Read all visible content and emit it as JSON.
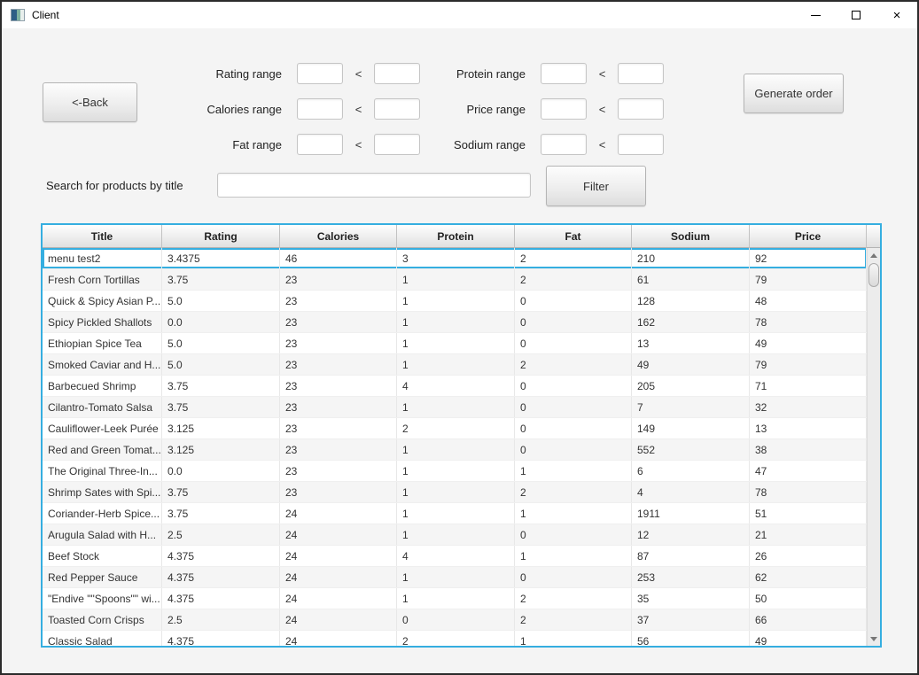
{
  "window": {
    "title": "Client",
    "controls": {
      "minimize": "minimize",
      "maximize": "maximize",
      "close": "×"
    }
  },
  "colors": {
    "focus_accent": "#35aee0",
    "background": "#f4f4f4",
    "row_alt": "#f5f5f5"
  },
  "controls": {
    "back_label": "<-Back",
    "generate_label": "Generate order",
    "filter_label": "Filter",
    "lt": "<"
  },
  "search": {
    "label": "Search for products by title",
    "value": ""
  },
  "ranges": {
    "left": [
      {
        "label": "Rating range",
        "min": "",
        "max": ""
      },
      {
        "label": "Calories range",
        "min": "",
        "max": ""
      },
      {
        "label": "Fat range",
        "min": "",
        "max": ""
      }
    ],
    "right": [
      {
        "label": "Protein range",
        "min": "",
        "max": ""
      },
      {
        "label": "Price range",
        "min": "",
        "max": ""
      },
      {
        "label": "Sodium range",
        "min": "",
        "max": ""
      }
    ]
  },
  "table": {
    "columns": [
      "Title",
      "Rating",
      "Calories",
      "Protein",
      "Fat",
      "Sodium",
      "Price"
    ],
    "selected_index": 0,
    "rows": [
      [
        "menu test2",
        "3.4375",
        "46",
        "3",
        "2",
        "210",
        "92"
      ],
      [
        "Fresh Corn Tortillas",
        "3.75",
        "23",
        "1",
        "2",
        "61",
        "79"
      ],
      [
        "Quick & Spicy Asian P...",
        "5.0",
        "23",
        "1",
        "0",
        "128",
        "48"
      ],
      [
        "Spicy Pickled Shallots",
        "0.0",
        "23",
        "1",
        "0",
        "162",
        "78"
      ],
      [
        "Ethiopian Spice Tea",
        "5.0",
        "23",
        "1",
        "0",
        "13",
        "49"
      ],
      [
        "Smoked Caviar and H...",
        "5.0",
        "23",
        "1",
        "2",
        "49",
        "79"
      ],
      [
        "Barbecued Shrimp",
        "3.75",
        "23",
        "4",
        "0",
        "205",
        "71"
      ],
      [
        "Cilantro-Tomato Salsa",
        "3.75",
        "23",
        "1",
        "0",
        "7",
        "32"
      ],
      [
        "Cauliflower-Leek Purée",
        "3.125",
        "23",
        "2",
        "0",
        "149",
        "13"
      ],
      [
        "Red and Green Tomat...",
        "3.125",
        "23",
        "1",
        "0",
        "552",
        "38"
      ],
      [
        "The Original Three-In...",
        "0.0",
        "23",
        "1",
        "1",
        "6",
        "47"
      ],
      [
        "Shrimp Sates with Spi...",
        "3.75",
        "23",
        "1",
        "2",
        "4",
        "78"
      ],
      [
        "Coriander-Herb Spice...",
        "3.75",
        "24",
        "1",
        "1",
        "1911",
        "51"
      ],
      [
        "Arugula Salad with H...",
        "2.5",
        "24",
        "1",
        "0",
        "12",
        "21"
      ],
      [
        "Beef Stock",
        "4.375",
        "24",
        "4",
        "1",
        "87",
        "26"
      ],
      [
        "Red Pepper Sauce",
        "4.375",
        "24",
        "1",
        "0",
        "253",
        "62"
      ],
      [
        "\"Endive \"\"Spoons\"\" wi...",
        "4.375",
        "24",
        "1",
        "2",
        "35",
        "50"
      ],
      [
        "Toasted Corn Crisps",
        "2.5",
        "24",
        "0",
        "2",
        "37",
        "66"
      ],
      [
        "Classic Salad",
        "4.375",
        "24",
        "2",
        "1",
        "56",
        "49"
      ]
    ]
  }
}
